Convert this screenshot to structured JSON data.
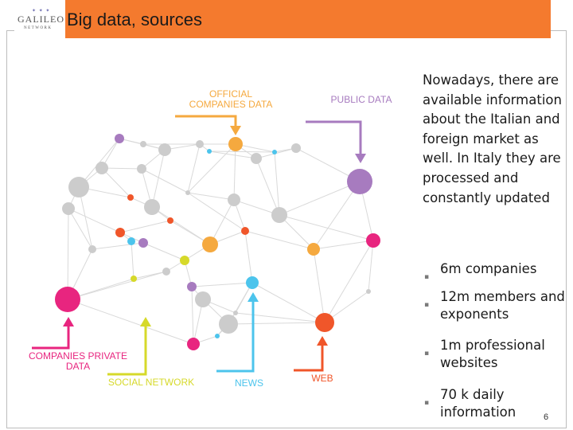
{
  "header": {
    "title": "Big data, sources",
    "logo_main": "GALILEO",
    "logo_sub": "NETWORK",
    "logo_small": "✦ ✦ ✦",
    "accent_color": "#f47a2e"
  },
  "labels": {
    "official": [
      "OFFICIAL",
      "COMPANIES DATA"
    ],
    "public": "PUBLIC DATA",
    "private": [
      "COMPANIES PRIVATE",
      "DATA"
    ],
    "social": "SOCIAL NETWORK",
    "news": "NEWS",
    "web": "WEB"
  },
  "colors": {
    "official": "#f5a93f",
    "public": "#a77bbf",
    "private": "#e8257f",
    "social": "#d6d92a",
    "news": "#4cc4ec",
    "web": "#f0562a"
  },
  "body_text": "Nowadays, there are available information about the Italian and foreign market as well. In Italy they are processed and constantly updated",
  "bullets": [
    "6m companies",
    "12m members and exponents",
    "1m professional websites",
    "70 k daily information"
  ],
  "bullet_marker": "▪",
  "page_number": "6"
}
